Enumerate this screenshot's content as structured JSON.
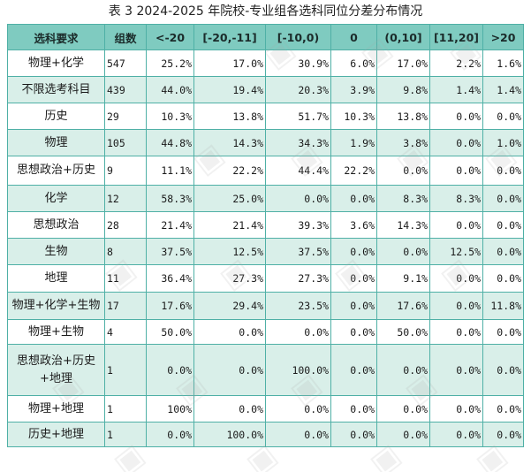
{
  "caption": "表 3 2024-2025 年院校-专业组各选科同位分差分布情况",
  "headers": [
    "选科要求",
    "组数",
    "<-20",
    "[-20,-11]",
    "[-10,0)",
    "0",
    "(0,10]",
    "[11,20]",
    ">20"
  ],
  "rows": [
    {
      "req": "物理+化学",
      "count": "547",
      "v": [
        "25.2%",
        "17.0%",
        "30.9%",
        "6.0%",
        "17.0%",
        "2.2%",
        "1.6%"
      ]
    },
    {
      "req": "不限选考科目",
      "count": "439",
      "v": [
        "44.0%",
        "19.4%",
        "20.3%",
        "3.9%",
        "9.8%",
        "1.4%",
        "1.4%"
      ]
    },
    {
      "req": "历史",
      "count": "29",
      "v": [
        "10.3%",
        "13.8%",
        "51.7%",
        "10.3%",
        "13.8%",
        "0.0%",
        "0.0%"
      ]
    },
    {
      "req": "物理",
      "count": "105",
      "v": [
        "44.8%",
        "14.3%",
        "34.3%",
        "1.9%",
        "3.8%",
        "0.0%",
        "1.0%"
      ]
    },
    {
      "req": "思想政治+历史",
      "count": "9",
      "v": [
        "11.1%",
        "22.2%",
        "44.4%",
        "22.2%",
        "0.0%",
        "0.0%",
        "0.0%"
      ]
    },
    {
      "req": "化学",
      "count": "12",
      "v": [
        "58.3%",
        "25.0%",
        "0.0%",
        "0.0%",
        "8.3%",
        "8.3%",
        "0.0%"
      ]
    },
    {
      "req": "思想政治",
      "count": "28",
      "v": [
        "21.4%",
        "21.4%",
        "39.3%",
        "3.6%",
        "14.3%",
        "0.0%",
        "0.0%"
      ]
    },
    {
      "req": "生物",
      "count": "8",
      "v": [
        "37.5%",
        "12.5%",
        "37.5%",
        "0.0%",
        "0.0%",
        "12.5%",
        "0.0%"
      ]
    },
    {
      "req": "地理",
      "count": "11",
      "v": [
        "36.4%",
        "27.3%",
        "27.3%",
        "0.0%",
        "9.1%",
        "0.0%",
        "0.0%"
      ]
    },
    {
      "req": "物理+化学+生物",
      "count": "17",
      "v": [
        "17.6%",
        "29.4%",
        "23.5%",
        "0.0%",
        "17.6%",
        "0.0%",
        "11.8%"
      ]
    },
    {
      "req": "物理+生物",
      "count": "4",
      "v": [
        "50.0%",
        "0.0%",
        "0.0%",
        "0.0%",
        "50.0%",
        "0.0%",
        "0.0%"
      ]
    },
    {
      "req": "思想政治+历史+地理",
      "count": "1",
      "v": [
        "0.0%",
        "0.0%",
        "100.0%",
        "0.0%",
        "0.0%",
        "0.0%",
        "0.0%"
      ]
    },
    {
      "req": "物理+地理",
      "count": "1",
      "v": [
        "100%",
        "0.0%",
        "0.0%",
        "0.0%",
        "0.0%",
        "0.0%",
        "0.0%"
      ]
    },
    {
      "req": "历史+地理",
      "count": "1",
      "v": [
        "0.0%",
        "100.0%",
        "0.0%",
        "0.0%",
        "0.0%",
        "0.0%",
        "0.0%"
      ]
    }
  ],
  "colors": {
    "header_bg": "#7fcbc0",
    "alt_row_bg": "#d9efe9",
    "border": "#4fb0a6"
  }
}
